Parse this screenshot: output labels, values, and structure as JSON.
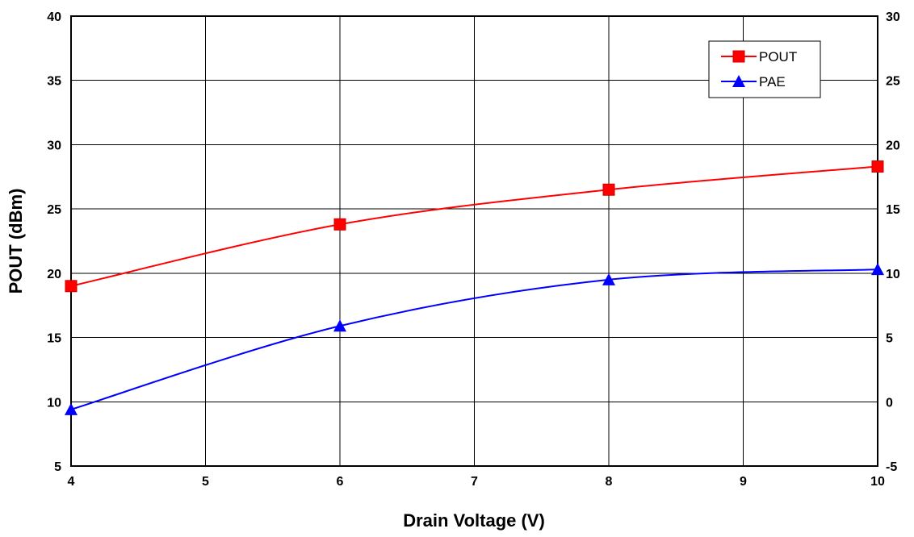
{
  "chart_data": {
    "type": "line",
    "xlabel": "Drain Voltage (V)",
    "ylabel": "POUT (dBm)",
    "y2label": "",
    "xlim": [
      4,
      10
    ],
    "ylim": [
      5,
      40
    ],
    "y2lim": [
      -5,
      30
    ],
    "x_ticks": [
      4,
      5,
      6,
      7,
      8,
      9,
      10
    ],
    "y_ticks": [
      5,
      10,
      15,
      20,
      25,
      30,
      35,
      40
    ],
    "y2_ticks": [
      -5,
      0,
      5,
      10,
      15,
      20,
      25,
      30
    ],
    "grid": true,
    "legend_position": "top-right",
    "series": [
      {
        "name": "POUT",
        "axis": "left",
        "color": "#ff0000",
        "marker": "square",
        "x": [
          4,
          6,
          8,
          10
        ],
        "values": [
          19.0,
          23.8,
          26.5,
          28.3
        ]
      },
      {
        "name": "PAE",
        "axis": "right",
        "color": "#0000ff",
        "marker": "triangle",
        "x": [
          4,
          6,
          8,
          10
        ],
        "values": [
          -0.6,
          5.9,
          9.5,
          10.3
        ]
      }
    ]
  }
}
